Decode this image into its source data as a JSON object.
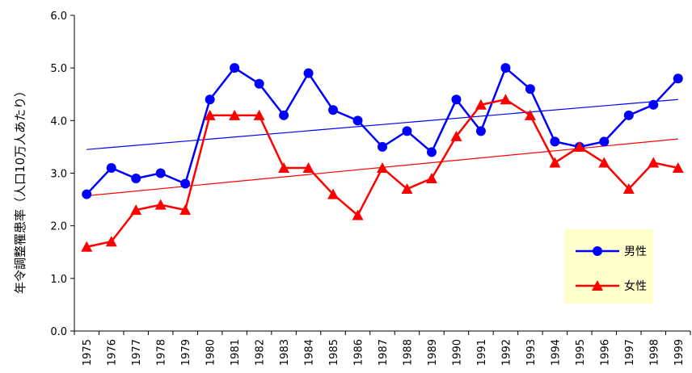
{
  "chart_data": {
    "type": "line",
    "title": "",
    "xlabel": "",
    "ylabel": "年令調整罹患率（人口10万人あたり）",
    "ylim": [
      0.0,
      6.0
    ],
    "yticks": [
      "0.0",
      "1.0",
      "2.0",
      "3.0",
      "4.0",
      "5.0",
      "6.0"
    ],
    "x": [
      "1975",
      "1976",
      "1977",
      "1978",
      "1979",
      "1980",
      "1981",
      "1982",
      "1983",
      "1984",
      "1985",
      "1986",
      "1987",
      "1988",
      "1989",
      "1990",
      "1991",
      "1992",
      "1993",
      "1994",
      "1995",
      "1996",
      "1997",
      "1998",
      "1999"
    ],
    "grid": false,
    "legend_position": "bottom-right",
    "series": [
      {
        "name": "男性",
        "color": "#0000ff",
        "marker": "circle",
        "values": [
          2.6,
          3.1,
          2.9,
          3.0,
          2.8,
          4.4,
          5.0,
          4.7,
          4.1,
          4.9,
          4.2,
          4.0,
          3.5,
          3.8,
          3.4,
          4.4,
          3.8,
          5.0,
          4.6,
          3.6,
          3.5,
          3.6,
          4.1,
          4.3,
          4.8
        ],
        "trend": [
          3.45,
          4.4
        ]
      },
      {
        "name": "女性",
        "color": "#ff0000",
        "marker": "triangle",
        "values": [
          1.6,
          1.7,
          2.3,
          2.4,
          2.3,
          4.1,
          4.1,
          4.1,
          3.1,
          3.1,
          2.6,
          2.2,
          3.1,
          2.7,
          2.9,
          3.7,
          4.3,
          4.4,
          4.1,
          3.2,
          3.5,
          3.2,
          2.7,
          3.2,
          3.1
        ],
        "trend": [
          2.57,
          3.65
        ]
      }
    ],
    "legend_bg": "#ffffcc"
  }
}
